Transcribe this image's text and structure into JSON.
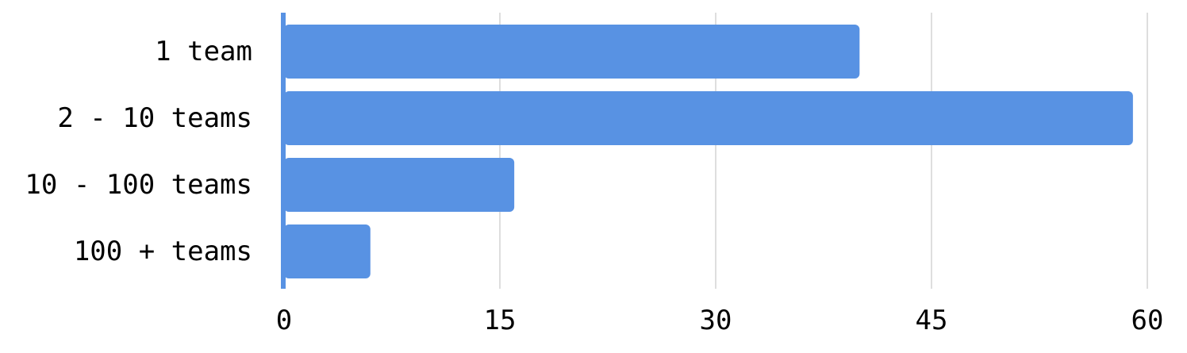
{
  "chart_data": {
    "type": "bar",
    "orientation": "horizontal",
    "categories": [
      "1 team",
      "2 - 10 teams",
      "10 - 100 teams",
      "100 + teams"
    ],
    "values": [
      40,
      59,
      16,
      6
    ],
    "xlim": [
      0,
      60
    ],
    "xticks": [
      "0",
      "15",
      "30",
      "45",
      "60"
    ],
    "grid": true,
    "legend": "none",
    "colors": {
      "bar": "#5892E3",
      "grid": "#C8C8C8",
      "axis": "#5892E3",
      "text": "#000000"
    }
  }
}
